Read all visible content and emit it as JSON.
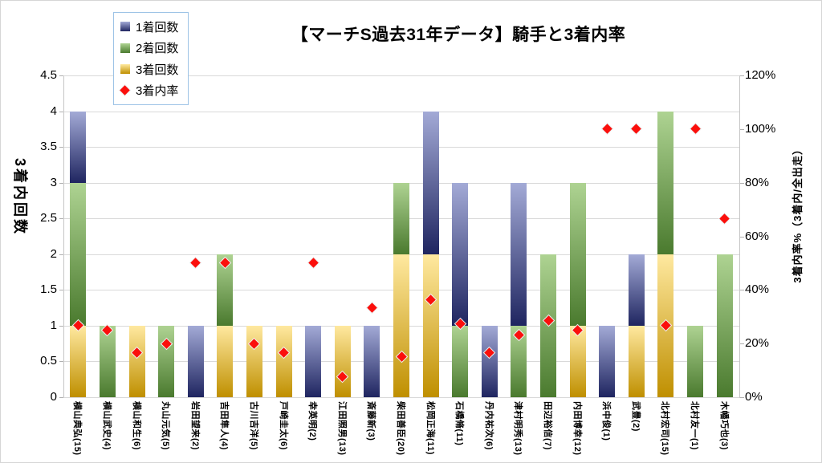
{
  "title": "【マーチS過去31年データ】騎手と3着内率",
  "legend": {
    "items": [
      {
        "label": "1着回数",
        "marker": "square",
        "series": "first"
      },
      {
        "label": "2着回数",
        "marker": "square",
        "series": "second"
      },
      {
        "label": "3着回数",
        "marker": "square",
        "series": "third"
      },
      {
        "label": "3着内率",
        "marker": "diamond",
        "series": "rate"
      }
    ]
  },
  "axes": {
    "left_title": "3着内回数",
    "right_title": "3着内率%（3着内/全出走）",
    "left_ticks": [
      "0",
      "0.5",
      "1",
      "1.5",
      "2",
      "2.5",
      "3",
      "3.5",
      "4",
      "4.5"
    ],
    "right_ticks": [
      "0%",
      "20%",
      "40%",
      "60%",
      "80%",
      "100%",
      "120%"
    ]
  },
  "colors": {
    "first_top": "#a3aad6",
    "first_bottom": "#1f2560",
    "second_top": "#aed392",
    "second_bottom": "#4a7a2e",
    "third_top": "#ffe9a0",
    "third_bottom": "#bf8f00",
    "rate": "#fb0f0c",
    "rate_outline": "#ececec",
    "grid": "#d9d9d9",
    "legend_border": "#9dc3e6"
  },
  "chart_data": {
    "type": "bar",
    "subtype": "stacked-bar-with-scatter",
    "title": "【マーチS過去31年データ】騎手と3着内率",
    "xlabel": "",
    "ylabel": "3着内回数",
    "y2label": "3着内率%（3着内/全出走）",
    "ylim": [
      0,
      4.5
    ],
    "y2lim": [
      0,
      120
    ],
    "grid": true,
    "legend_position": "top-left",
    "stack_order_bottom_to_top": [
      "3着回数",
      "2着回数",
      "1着回数"
    ],
    "categories": [
      "横山典弘(15)",
      "横山武史(4)",
      "横山和生(6)",
      "丸山元気(5)",
      "岩田望来(2)",
      "吉田隼人(4)",
      "古川吉洋(5)",
      "戸崎圭太(6)",
      "幸英明(2)",
      "江田照男(13)",
      "斎藤新(3)",
      "柴田善臣(20)",
      "松岡正海(11)",
      "石橋脩(11)",
      "丹内祐次(6)",
      "津村明秀(13)",
      "田辺裕信(7)",
      "内田博幸(12)",
      "浜中俊(1)",
      "武豊(2)",
      "北村宏司(15)",
      "北村友一(1)",
      "木幡巧也(3)"
    ],
    "series": [
      {
        "name": "1着回数",
        "role": "first",
        "type": "bar",
        "axis": "left",
        "values": [
          1,
          0,
          0,
          0,
          1,
          0,
          0,
          0,
          1,
          0,
          1,
          0,
          2,
          2,
          1,
          2,
          0,
          0,
          1,
          1,
          0,
          0,
          0
        ]
      },
      {
        "name": "2着回数",
        "role": "second",
        "type": "bar",
        "axis": "left",
        "values": [
          2,
          1,
          0,
          1,
          0,
          1,
          0,
          0,
          0,
          0,
          0,
          1,
          0,
          1,
          0,
          1,
          2,
          2,
          0,
          0,
          2,
          1,
          2
        ]
      },
      {
        "name": "3着回数",
        "role": "third",
        "type": "bar",
        "axis": "left",
        "values": [
          1,
          0,
          1,
          0,
          0,
          1,
          1,
          1,
          0,
          1,
          0,
          2,
          2,
          0,
          0,
          0,
          0,
          1,
          0,
          1,
          2,
          0,
          0
        ]
      },
      {
        "name": "3着内率",
        "role": "rate",
        "type": "scatter",
        "axis": "right",
        "values": [
          26.67,
          25,
          16.67,
          20,
          50,
          50,
          20,
          16.67,
          50,
          7.69,
          33.33,
          15,
          36.36,
          27.27,
          16.67,
          23.08,
          28.57,
          25,
          100,
          100,
          26.67,
          100,
          66.67
        ]
      }
    ]
  }
}
